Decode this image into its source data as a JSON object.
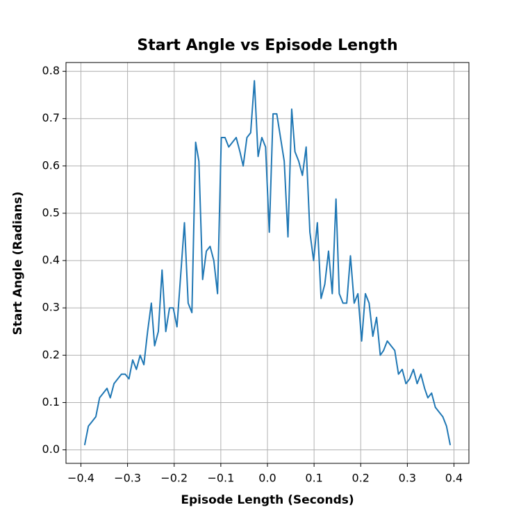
{
  "chart_data": {
    "type": "line",
    "title": "Start Angle vs Episode Length",
    "xlabel": "Episode Length (Seconds)",
    "ylabel": "Start Angle (Radians)",
    "color": "#1f77b4",
    "grid": true,
    "xlim": [
      -0.432,
      0.432
    ],
    "ylim": [
      -0.0285,
      0.8185
    ],
    "xticks": [
      {
        "value": -0.4,
        "label": "−0.4"
      },
      {
        "value": -0.3,
        "label": "−0.3"
      },
      {
        "value": -0.2,
        "label": "−0.2"
      },
      {
        "value": -0.1,
        "label": "−0.1"
      },
      {
        "value": 0,
        "label": "0.0"
      },
      0.1,
      0.2,
      0.3,
      0.4
    ],
    "yticks": [
      {
        "value": 0,
        "label": "0.0"
      },
      0.1,
      0.2,
      0.3,
      0.4,
      0.5,
      0.6,
      0.7,
      0.8
    ],
    "x": [
      -0.392,
      -0.384,
      -0.376,
      -0.368,
      -0.36,
      -0.352,
      -0.344,
      -0.337,
      -0.329,
      -0.321,
      -0.313,
      -0.305,
      -0.297,
      -0.289,
      -0.281,
      -0.273,
      -0.265,
      -0.257,
      -0.249,
      -0.242,
      -0.234,
      -0.226,
      -0.218,
      -0.21,
      -0.202,
      -0.194,
      -0.186,
      -0.178,
      -0.17,
      -0.162,
      -0.154,
      -0.147,
      -0.139,
      -0.131,
      -0.123,
      -0.115,
      -0.107,
      -0.099,
      -0.091,
      -0.083,
      -0.075,
      -0.067,
      -0.059,
      -0.052,
      -0.044,
      -0.036,
      -0.028,
      -0.02,
      -0.012,
      -0.004,
      0.004,
      0.012,
      0.02,
      0.028,
      0.036,
      0.044,
      0.052,
      0.059,
      0.067,
      0.075,
      0.083,
      0.091,
      0.099,
      0.107,
      0.115,
      0.123,
      0.131,
      0.139,
      0.147,
      0.154,
      0.162,
      0.17,
      0.178,
      0.186,
      0.194,
      0.202,
      0.21,
      0.218,
      0.226,
      0.234,
      0.242,
      0.249,
      0.257,
      0.265,
      0.273,
      0.281,
      0.289,
      0.297,
      0.305,
      0.313,
      0.321,
      0.329,
      0.337,
      0.344,
      0.352,
      0.36,
      0.368,
      0.376,
      0.384,
      0.392
    ],
    "values": [
      0.01,
      0.05,
      0.06,
      0.07,
      0.11,
      0.12,
      0.13,
      0.11,
      0.14,
      0.15,
      0.16,
      0.16,
      0.15,
      0.19,
      0.17,
      0.2,
      0.18,
      0.25,
      0.31,
      0.22,
      0.25,
      0.38,
      0.25,
      0.3,
      0.3,
      0.26,
      0.37,
      0.48,
      0.31,
      0.29,
      0.65,
      0.61,
      0.36,
      0.42,
      0.43,
      0.4,
      0.33,
      0.66,
      0.66,
      0.64,
      0.65,
      0.66,
      0.63,
      0.6,
      0.66,
      0.67,
      0.78,
      0.62,
      0.66,
      0.64,
      0.46,
      0.71,
      0.71,
      0.66,
      0.61,
      0.45,
      0.72,
      0.63,
      0.61,
      0.58,
      0.64,
      0.46,
      0.4,
      0.48,
      0.32,
      0.35,
      0.42,
      0.33,
      0.53,
      0.33,
      0.31,
      0.31,
      0.41,
      0.31,
      0.33,
      0.23,
      0.33,
      0.31,
      0.24,
      0.28,
      0.2,
      0.21,
      0.23,
      0.22,
      0.21,
      0.16,
      0.17,
      0.14,
      0.15,
      0.17,
      0.14,
      0.16,
      0.13,
      0.11,
      0.12,
      0.09,
      0.08,
      0.07,
      0.05,
      0.01
    ]
  }
}
